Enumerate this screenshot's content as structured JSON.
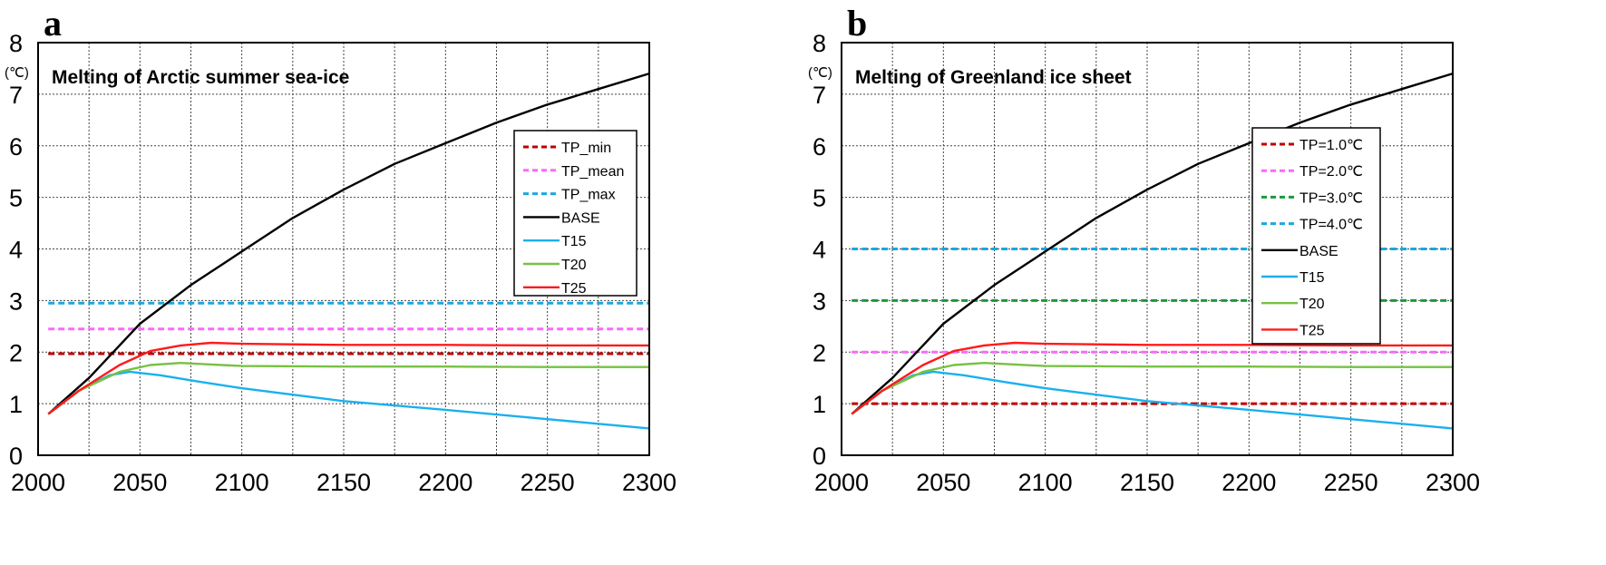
{
  "panels": [
    {
      "letter": "a",
      "unit": "(℃)",
      "chart_data": {
        "type": "line",
        "title": "Melting of Arctic summer sea-ice",
        "xlabel": "",
        "ylabel": "(℃)",
        "xlim": [
          2000,
          2300
        ],
        "ylim": [
          0,
          8
        ],
        "xticks": [
          2000,
          2050,
          2100,
          2150,
          2200,
          2250,
          2300
        ],
        "yticks": [
          0,
          1,
          2,
          3,
          4,
          5,
          6,
          7,
          8
        ],
        "grid": true,
        "legend_position": "right",
        "series": [
          {
            "name": "TP_min",
            "color": "#c00000",
            "dashed": true,
            "x": [
              2005,
              2300
            ],
            "y": [
              1.97,
              1.97
            ]
          },
          {
            "name": "TP_mean",
            "color": "#ff66ff",
            "dashed": true,
            "x": [
              2005,
              2300
            ],
            "y": [
              2.45,
              2.45
            ]
          },
          {
            "name": "TP_max",
            "color": "#1aa7e0",
            "dashed": true,
            "x": [
              2005,
              2300
            ],
            "y": [
              2.95,
              2.95
            ]
          },
          {
            "name": "BASE",
            "color": "#000000",
            "dashed": false,
            "x": [
              2005,
              2025,
              2050,
              2075,
              2100,
              2125,
              2150,
              2175,
              2200,
              2225,
              2250,
              2275,
              2300
            ],
            "y": [
              0.8,
              1.5,
              2.55,
              3.3,
              3.95,
              4.6,
              5.15,
              5.65,
              6.05,
              6.45,
              6.8,
              7.1,
              7.4
            ]
          },
          {
            "name": "T15",
            "color": "#1ab0ee",
            "dashed": false,
            "x": [
              2005,
              2020,
              2035,
              2045,
              2060,
              2080,
              2100,
              2150,
              2200,
              2250,
              2300
            ],
            "y": [
              0.8,
              1.25,
              1.55,
              1.62,
              1.55,
              1.42,
              1.3,
              1.05,
              0.88,
              0.7,
              0.52
            ]
          },
          {
            "name": "T20",
            "color": "#77c142",
            "dashed": false,
            "x": [
              2005,
              2020,
              2040,
              2055,
              2070,
              2085,
              2100,
              2150,
              2200,
              2250,
              2300
            ],
            "y": [
              0.8,
              1.25,
              1.62,
              1.75,
              1.79,
              1.76,
              1.73,
              1.72,
              1.72,
              1.71,
              1.71
            ]
          },
          {
            "name": "T25",
            "color": "#ff1a1a",
            "dashed": false,
            "x": [
              2005,
              2020,
              2040,
              2055,
              2070,
              2085,
              2100,
              2150,
              2200,
              2250,
              2300
            ],
            "y": [
              0.8,
              1.25,
              1.75,
              2.02,
              2.13,
              2.18,
              2.16,
              2.14,
              2.14,
              2.13,
              2.13
            ]
          }
        ]
      }
    },
    {
      "letter": "b",
      "unit": "(℃)",
      "chart_data": {
        "type": "line",
        "title": "Melting of Greenland ice sheet",
        "xlabel": "",
        "ylabel": "(℃)",
        "xlim": [
          2000,
          2300
        ],
        "ylim": [
          0,
          8
        ],
        "xticks": [
          2000,
          2050,
          2100,
          2150,
          2200,
          2250,
          2300
        ],
        "yticks": [
          0,
          1,
          2,
          3,
          4,
          5,
          6,
          7,
          8
        ],
        "grid": true,
        "legend_position": "right",
        "series": [
          {
            "name": "TP=1.0℃",
            "color": "#c00000",
            "dashed": true,
            "x": [
              2005,
              2300
            ],
            "y": [
              1.0,
              1.0
            ]
          },
          {
            "name": "TP=2.0℃",
            "color": "#ff66ff",
            "dashed": true,
            "x": [
              2005,
              2300
            ],
            "y": [
              2.0,
              2.0
            ]
          },
          {
            "name": "TP=3.0℃",
            "color": "#1a9a3a",
            "dashed": true,
            "x": [
              2005,
              2300
            ],
            "y": [
              3.0,
              3.0
            ]
          },
          {
            "name": "TP=4.0℃",
            "color": "#1aa7e0",
            "dashed": true,
            "x": [
              2005,
              2300
            ],
            "y": [
              4.0,
              4.0
            ]
          },
          {
            "name": "BASE",
            "color": "#000000",
            "dashed": false,
            "x": [
              2005,
              2025,
              2050,
              2075,
              2100,
              2125,
              2150,
              2175,
              2200,
              2225,
              2250,
              2275,
              2300
            ],
            "y": [
              0.8,
              1.5,
              2.55,
              3.3,
              3.95,
              4.6,
              5.15,
              5.65,
              6.05,
              6.45,
              6.8,
              7.1,
              7.4
            ]
          },
          {
            "name": "T15",
            "color": "#1ab0ee",
            "dashed": false,
            "x": [
              2005,
              2020,
              2035,
              2045,
              2060,
              2080,
              2100,
              2150,
              2200,
              2250,
              2300
            ],
            "y": [
              0.8,
              1.25,
              1.55,
              1.62,
              1.55,
              1.42,
              1.3,
              1.05,
              0.88,
              0.7,
              0.52
            ]
          },
          {
            "name": "T20",
            "color": "#77c142",
            "dashed": false,
            "x": [
              2005,
              2020,
              2040,
              2055,
              2070,
              2085,
              2100,
              2150,
              2200,
              2250,
              2300
            ],
            "y": [
              0.8,
              1.25,
              1.62,
              1.75,
              1.79,
              1.76,
              1.73,
              1.72,
              1.72,
              1.71,
              1.71
            ]
          },
          {
            "name": "T25",
            "color": "#ff1a1a",
            "dashed": false,
            "x": [
              2005,
              2020,
              2040,
              2055,
              2070,
              2085,
              2100,
              2150,
              2200,
              2250,
              2300
            ],
            "y": [
              0.8,
              1.25,
              1.75,
              2.02,
              2.13,
              2.18,
              2.16,
              2.14,
              2.14,
              2.13,
              2.13
            ]
          }
        ]
      }
    }
  ]
}
